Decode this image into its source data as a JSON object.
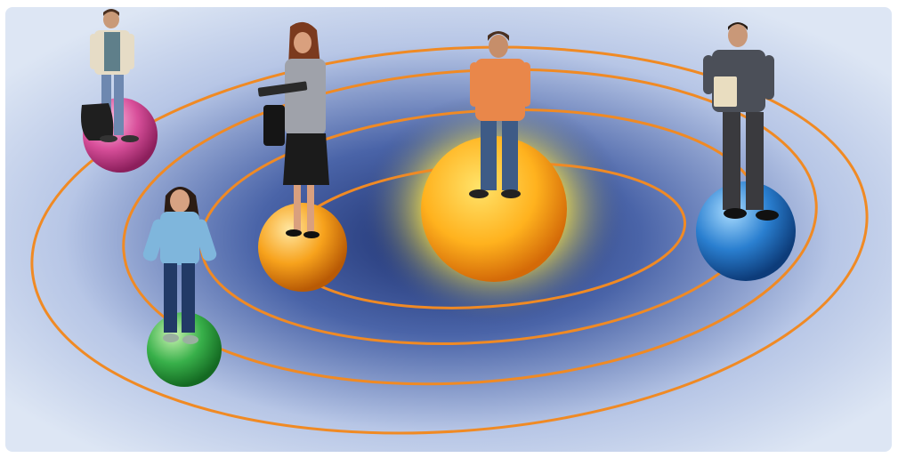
{
  "scene": {
    "colors": {
      "sky_light": "#dde6f4",
      "sky_mid": "#b7c6e6",
      "deep_blue": "#1c2f6e",
      "orbit": "#f08a24",
      "sun_core": "#ffe36a",
      "sun_outer": "#ff9a12",
      "sun_glow": "#fff3a0",
      "planet_pink": "#d84f9a",
      "planet_green": "#38b04a",
      "planet_orange": "#f7a21c",
      "planet_blue": "#2a7fd0"
    },
    "figures": [
      {
        "name": "boy-with-backpack"
      },
      {
        "name": "woman-on-phone-with-folder"
      },
      {
        "name": "boy-orange-shirt"
      },
      {
        "name": "man-holding-box"
      },
      {
        "name": "girl-light-blue-sweater"
      }
    ]
  }
}
